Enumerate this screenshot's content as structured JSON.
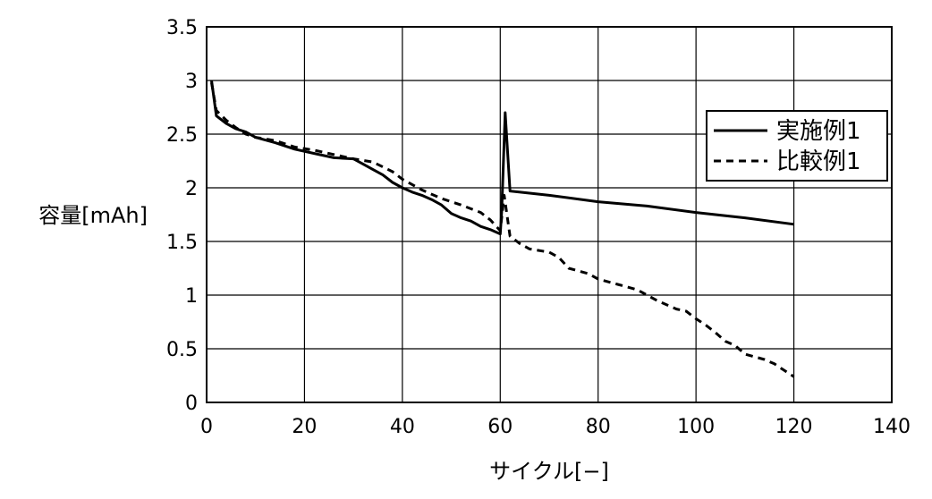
{
  "chart_data": {
    "type": "line",
    "xlabel": "サイクル[−]",
    "ylabel": "容量[mAh]",
    "xlim": [
      0,
      140
    ],
    "ylim": [
      0,
      3.5
    ],
    "x_ticks": [
      0,
      20,
      40,
      60,
      80,
      100,
      120,
      140
    ],
    "y_ticks": [
      0,
      0.5,
      1,
      1.5,
      2,
      2.5,
      3,
      3.5
    ],
    "x_tick_labels": [
      "0",
      "20",
      "40",
      "60",
      "80",
      "100",
      "120",
      "140"
    ],
    "y_tick_labels": [
      "0",
      "0.5",
      "1",
      "1.5",
      "2",
      "2.5",
      "3",
      "3.5"
    ],
    "grid": true,
    "legend_position": "top-right",
    "series": [
      {
        "name": "実施例1",
        "style": "solid",
        "color": "#000000",
        "points": [
          [
            1,
            3.0
          ],
          [
            2,
            2.67
          ],
          [
            4,
            2.6
          ],
          [
            6,
            2.55
          ],
          [
            8,
            2.52
          ],
          [
            10,
            2.47
          ],
          [
            14,
            2.42
          ],
          [
            18,
            2.36
          ],
          [
            22,
            2.32
          ],
          [
            26,
            2.28
          ],
          [
            30,
            2.27
          ],
          [
            32,
            2.22
          ],
          [
            34,
            2.17
          ],
          [
            36,
            2.12
          ],
          [
            38,
            2.05
          ],
          [
            40,
            2.0
          ],
          [
            42,
            1.96
          ],
          [
            44,
            1.93
          ],
          [
            46,
            1.89
          ],
          [
            48,
            1.84
          ],
          [
            50,
            1.76
          ],
          [
            52,
            1.72
          ],
          [
            54,
            1.69
          ],
          [
            56,
            1.64
          ],
          [
            58,
            1.61
          ],
          [
            60,
            1.57
          ],
          [
            60.3,
            1.78
          ],
          [
            61,
            2.7
          ],
          [
            62,
            1.97
          ],
          [
            70,
            1.93
          ],
          [
            80,
            1.87
          ],
          [
            90,
            1.83
          ],
          [
            100,
            1.77
          ],
          [
            110,
            1.72
          ],
          [
            120,
            1.66
          ]
        ]
      },
      {
        "name": "比較例1",
        "style": "dashed",
        "color": "#000000",
        "points": [
          [
            1,
            2.98
          ],
          [
            2,
            2.72
          ],
          [
            4,
            2.63
          ],
          [
            6,
            2.56
          ],
          [
            8,
            2.5
          ],
          [
            10,
            2.47
          ],
          [
            14,
            2.44
          ],
          [
            18,
            2.38
          ],
          [
            22,
            2.35
          ],
          [
            26,
            2.31
          ],
          [
            30,
            2.27
          ],
          [
            34,
            2.24
          ],
          [
            38,
            2.15
          ],
          [
            40,
            2.08
          ],
          [
            44,
            1.98
          ],
          [
            48,
            1.9
          ],
          [
            52,
            1.84
          ],
          [
            56,
            1.77
          ],
          [
            58,
            1.7
          ],
          [
            60,
            1.6
          ],
          [
            60.8,
            1.93
          ],
          [
            62,
            1.55
          ],
          [
            64,
            1.48
          ],
          [
            66,
            1.43
          ],
          [
            70,
            1.4
          ],
          [
            72,
            1.35
          ],
          [
            74,
            1.25
          ],
          [
            78,
            1.2
          ],
          [
            80,
            1.15
          ],
          [
            84,
            1.1
          ],
          [
            88,
            1.05
          ],
          [
            90,
            1.0
          ],
          [
            92,
            0.95
          ],
          [
            96,
            0.87
          ],
          [
            98,
            0.85
          ],
          [
            100,
            0.78
          ],
          [
            102,
            0.72
          ],
          [
            104,
            0.65
          ],
          [
            106,
            0.57
          ],
          [
            108,
            0.53
          ],
          [
            110,
            0.45
          ],
          [
            114,
            0.4
          ],
          [
            116,
            0.36
          ],
          [
            118,
            0.3
          ],
          [
            120,
            0.24
          ]
        ]
      }
    ]
  }
}
